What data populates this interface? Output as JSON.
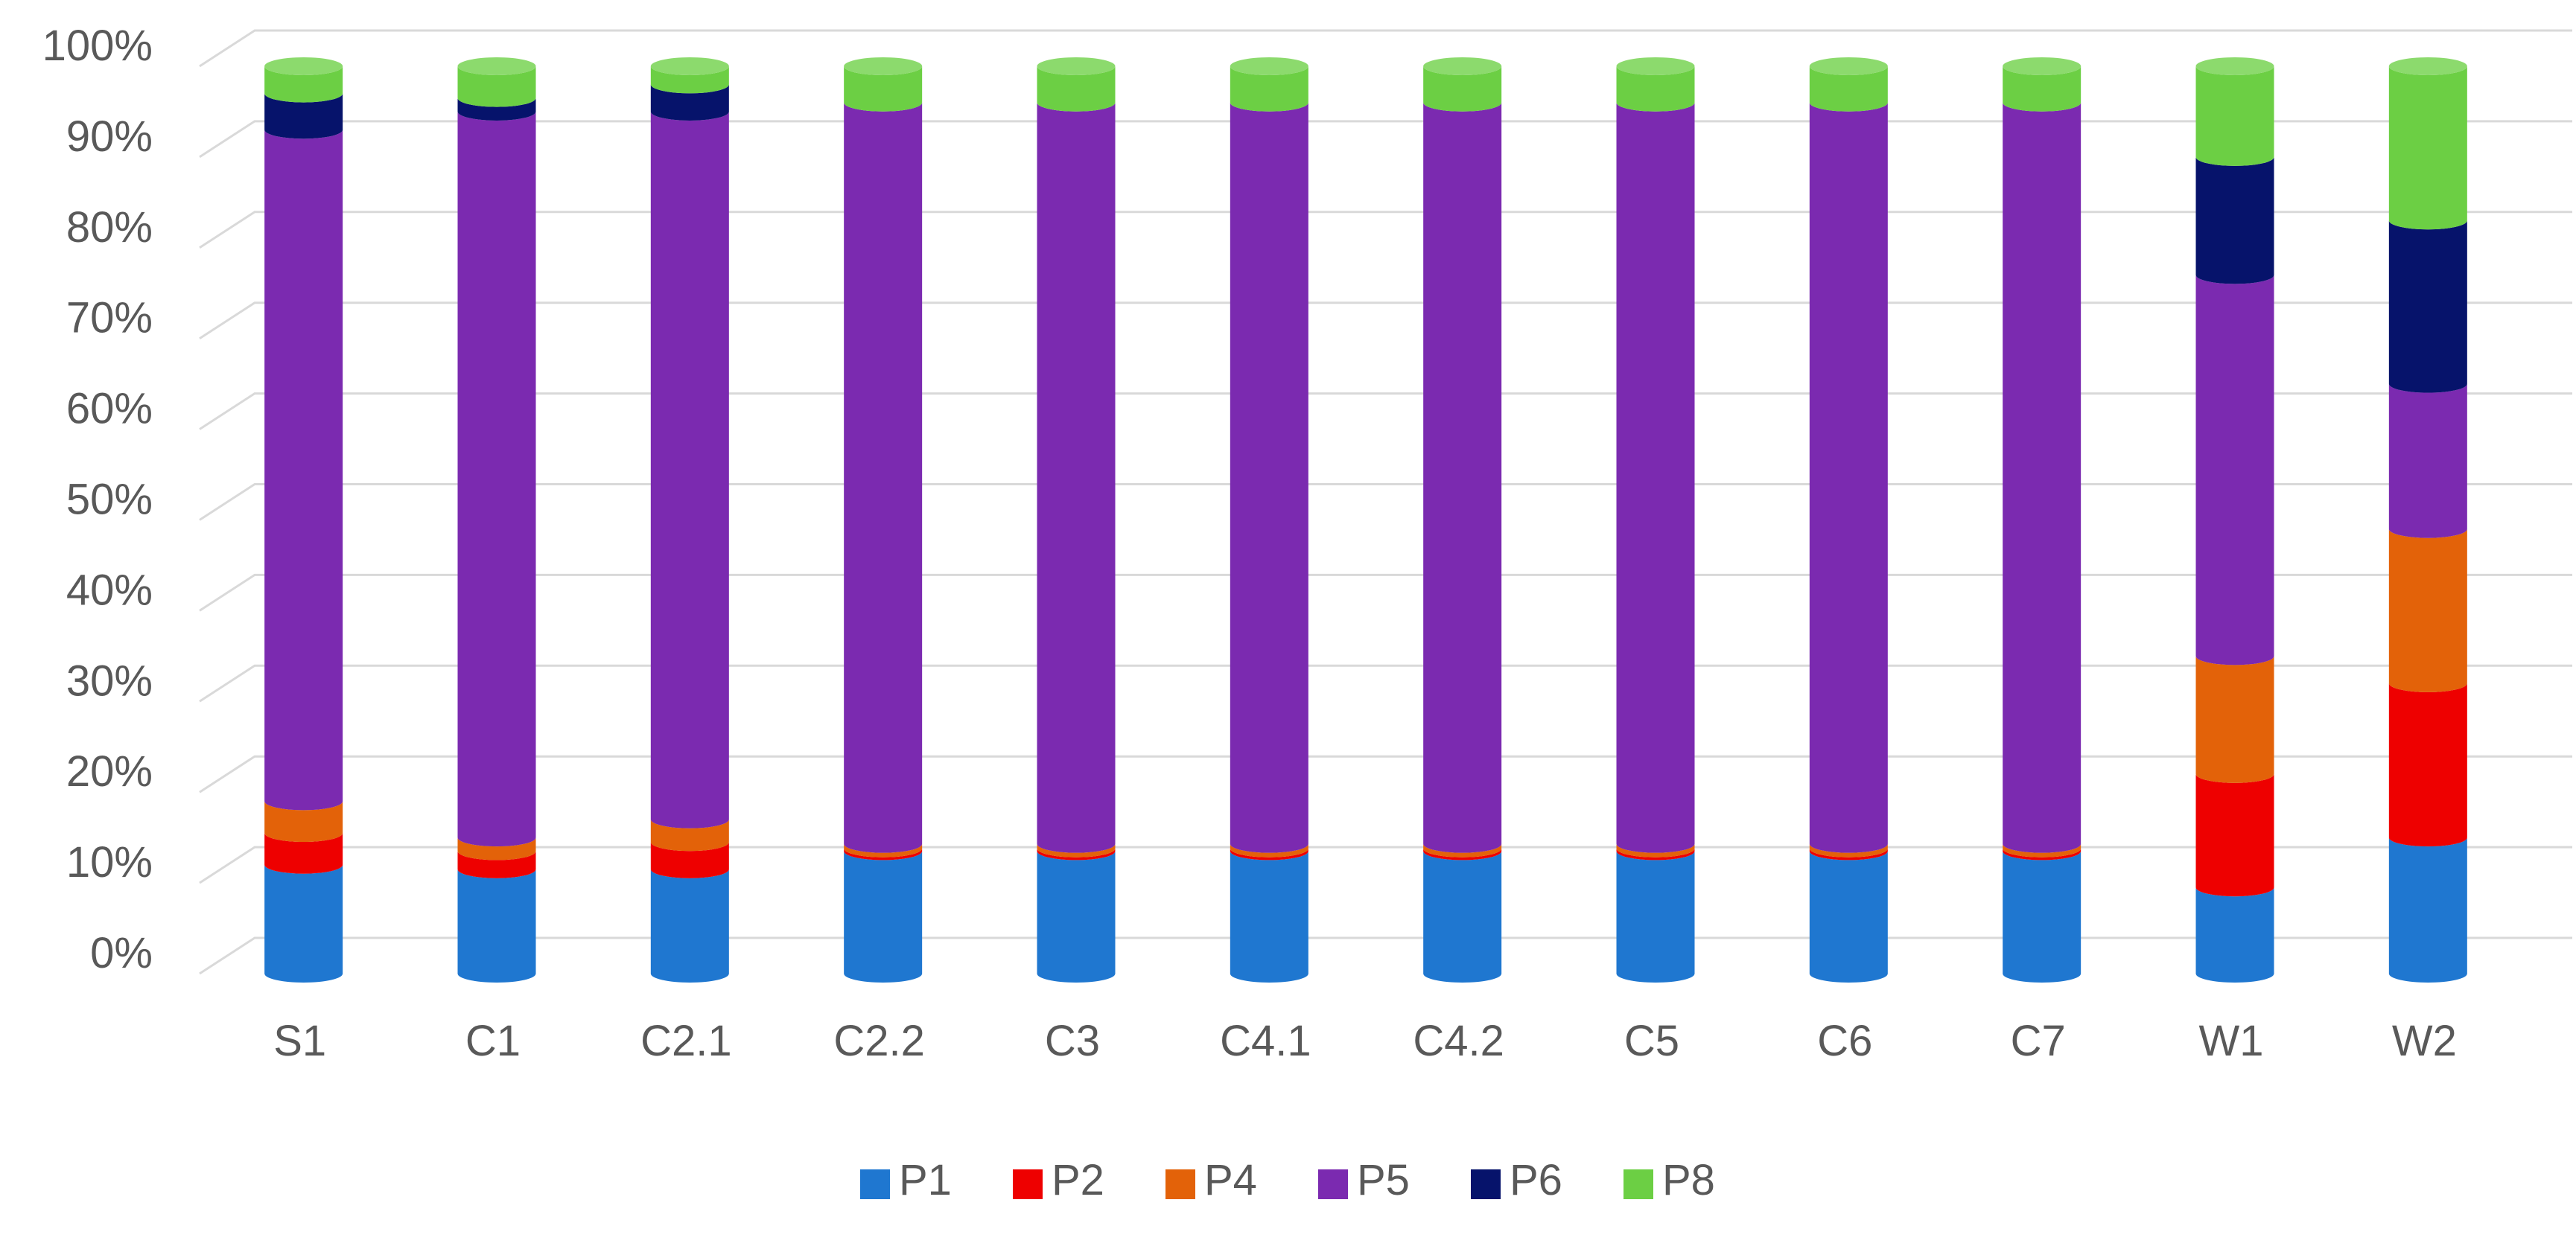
{
  "chart_data": {
    "type": "bar",
    "stacked": true,
    "percent_stacked": true,
    "style": "3d-cylinder",
    "categories": [
      "S1",
      "C1",
      "C2.1",
      "C2.2",
      "C3",
      "C4.1",
      "C4.2",
      "C5",
      "C6",
      "C7",
      "W1",
      "W2"
    ],
    "series": [
      {
        "name": "P1",
        "color": "#1f77d0",
        "values": [
          12,
          11.5,
          11.5,
          13.5,
          13.5,
          13.5,
          13.5,
          13.5,
          13.5,
          13.5,
          9.5,
          15
        ]
      },
      {
        "name": "P2",
        "color": "#ee0000",
        "values": [
          3.5,
          2,
          3,
          0.3,
          0.3,
          0.3,
          0.3,
          0.3,
          0.3,
          0.3,
          12.5,
          17
        ]
      },
      {
        "name": "P4",
        "color": "#e36209",
        "values": [
          3.5,
          1.5,
          2.5,
          0.5,
          0.5,
          0.5,
          0.5,
          0.5,
          0.5,
          0.5,
          13,
          17
        ]
      },
      {
        "name": "P5",
        "color": "#7b2ab0",
        "values": [
          74,
          80,
          78,
          81.7,
          81.7,
          81.7,
          81.7,
          81.7,
          81.7,
          81.7,
          42,
          16
        ]
      },
      {
        "name": "P6",
        "color": "#06136b",
        "values": [
          4,
          1.5,
          3,
          0,
          0,
          0,
          0,
          0,
          0,
          0,
          13,
          18
        ]
      },
      {
        "name": "P8",
        "color": "#6ccf44",
        "values": [
          3,
          3.5,
          2,
          4,
          4,
          4,
          4,
          4,
          4,
          4,
          10,
          17
        ]
      }
    ],
    "y_ticks": [
      "0%",
      "10%",
      "20%",
      "30%",
      "40%",
      "50%",
      "60%",
      "70%",
      "80%",
      "90%",
      "100%"
    ],
    "ylim": [
      0,
      100
    ],
    "grid": true,
    "legend_position": "bottom-center",
    "title": "",
    "xlabel": "",
    "ylabel": ""
  }
}
